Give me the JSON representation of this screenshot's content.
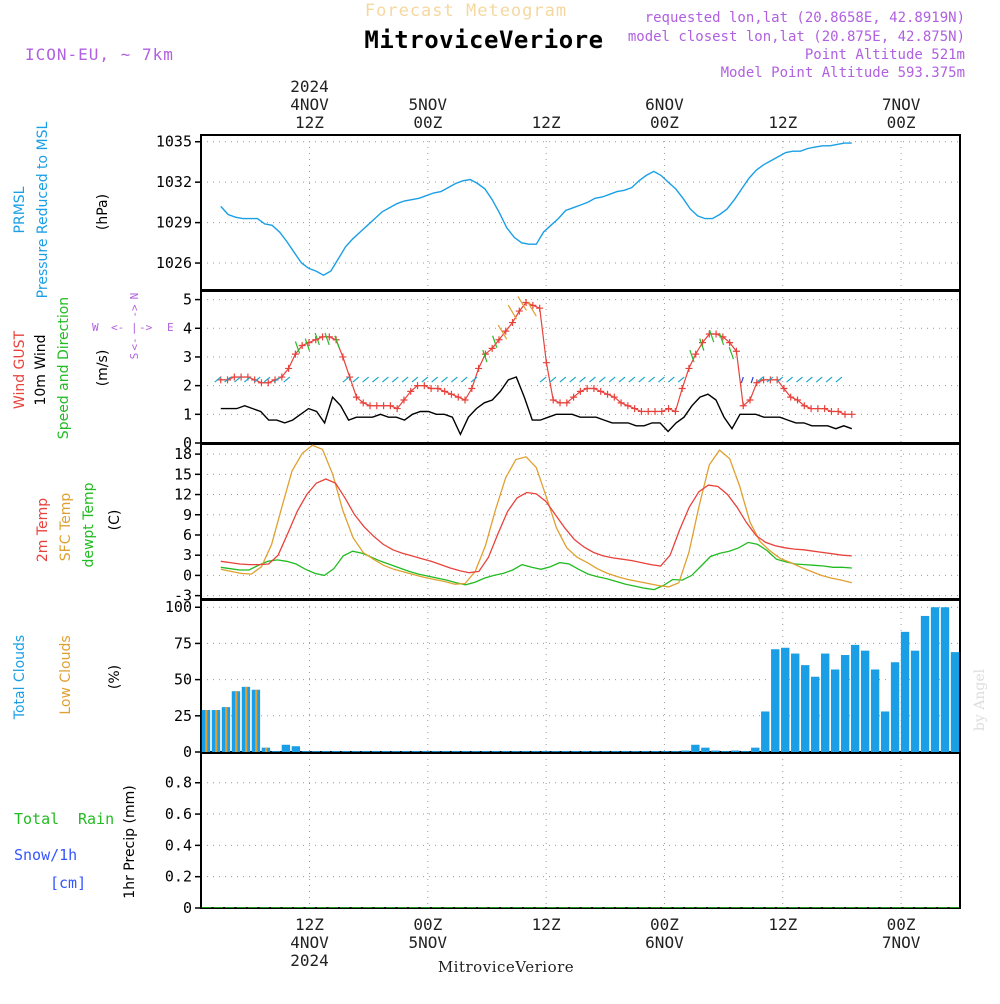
{
  "header": {
    "subtitle": "Forecast Meteogram",
    "title": "MitroviceVeriore",
    "model": "ICON-EU, ~ 7km",
    "requested": "requested lon,lat (20.8658E, 42.8919N)",
    "closest": "model closest lon,lat (20.875E, 42.875N)",
    "point_alt": "Point Altitude 521m",
    "model_alt": "Model Point Altitude 593.375m"
  },
  "footer": {
    "station": "MitroviceVeriore",
    "credit": "by Angel"
  },
  "colors": {
    "pressure": "#1a9fe6",
    "gust": "#e8423c",
    "wind": "#000000",
    "sfc": "#e0a030",
    "dewpt": "#22bb22",
    "clouds_total": "#1a9fe6",
    "clouds_low": "#e0a030",
    "purple": "#b060e0",
    "rain": "#22bb22",
    "snow": "#3355ff"
  },
  "time_axis": {
    "hours": 64,
    "top_ticks": [
      {
        "h": 9,
        "line1": "2024",
        "line2": "4NOV",
        "line3": "12Z"
      },
      {
        "h": 21,
        "line1": "",
        "line2": "5NOV",
        "line3": "00Z"
      },
      {
        "h": 33,
        "line1": "",
        "line2": "",
        "line3": "12Z"
      },
      {
        "h": 45,
        "line1": "",
        "line2": "6NOV",
        "line3": "00Z"
      },
      {
        "h": 57,
        "line1": "",
        "line2": "",
        "line3": "12Z"
      },
      {
        "h": 69,
        "line1": "",
        "line2": "7NOV",
        "line3": "00Z"
      }
    ],
    "bottom_ticks": [
      {
        "h": 9,
        "line1": "12Z",
        "line2": "4NOV",
        "line3": "2024"
      },
      {
        "h": 21,
        "line1": "00Z",
        "line2": "5NOV",
        "line3": ""
      },
      {
        "h": 33,
        "line1": "12Z",
        "line2": "",
        "line3": ""
      },
      {
        "h": 45,
        "line1": "00Z",
        "line2": "6NOV",
        "line3": ""
      },
      {
        "h": 57,
        "line1": "12Z",
        "line2": "",
        "line3": ""
      },
      {
        "h": 69,
        "line1": "00Z",
        "line2": "7NOV",
        "line3": ""
      }
    ]
  },
  "chart_data": [
    {
      "type": "line",
      "title": "PRMSL Pressure Reduced to MSL",
      "ylabel": "(hPa)",
      "label_lines": [
        "PRMSL",
        "Pressure Reduced to MSL"
      ],
      "ylim": [
        1024,
        1035.5
      ],
      "yticks": [
        1026,
        1029,
        1032,
        1035
      ],
      "series": [
        {
          "name": "PRMSL",
          "values": [
            1030.2,
            1029.6,
            1029.4,
            1029.3,
            1029.3,
            1029.3,
            1028.9,
            1028.8,
            1028.3,
            1027.6,
            1026.8,
            1026.0,
            1025.6,
            1025.4,
            1025.1,
            1025.4,
            1026.3,
            1027.2,
            1027.8,
            1028.3,
            1028.8,
            1029.3,
            1029.8,
            1030.1,
            1030.4,
            1030.6,
            1030.7,
            1030.8,
            1031.0,
            1031.2,
            1031.3,
            1031.6,
            1031.9,
            1032.1,
            1032.2,
            1031.9,
            1031.5,
            1030.7,
            1029.7,
            1028.6,
            1027.9,
            1027.5,
            1027.4,
            1027.4,
            1028.3,
            1028.8,
            1029.3,
            1029.9,
            1030.1,
            1030.3,
            1030.5,
            1030.8,
            1030.9,
            1031.1,
            1031.3,
            1031.4,
            1031.6,
            1032.1,
            1032.5,
            1032.8,
            1032.5,
            1032.0,
            1031.5,
            1030.8,
            1030.0,
            1029.5,
            1029.3,
            1029.3,
            1029.6,
            1030.0,
            1030.7,
            1031.5,
            1032.3,
            1032.9,
            1033.3,
            1033.6,
            1033.9,
            1034.2,
            1034.3,
            1034.3,
            1034.5,
            1034.6,
            1034.7,
            1034.7,
            1034.8,
            1034.9,
            1034.9
          ]
        }
      ]
    },
    {
      "type": "line",
      "title": "Wind GUST / 10m Wind Speed and Direction",
      "ylabel": "(m/s)",
      "label_lines": [
        "Wind GUST",
        "10m Wind",
        "Speed and Direction"
      ],
      "compass": {
        "n": "N",
        "s": "S",
        "w": "W",
        "e": "E"
      },
      "ylim": [
        0,
        5.3
      ],
      "yticks": [
        0,
        1,
        2,
        3,
        4,
        5
      ],
      "series": [
        {
          "name": "Wind GUST",
          "values": [
            2.2,
            2.2,
            2.3,
            2.3,
            2.3,
            2.2,
            2.1,
            2.1,
            2.2,
            2.3,
            2.6,
            3.1,
            3.4,
            3.5,
            3.6,
            3.7,
            3.7,
            3.6,
            3.0,
            2.3,
            1.6,
            1.4,
            1.3,
            1.3,
            1.3,
            1.3,
            1.2,
            1.5,
            1.8,
            2.0,
            2.0,
            1.9,
            1.9,
            1.8,
            1.7,
            1.6,
            1.5,
            1.9,
            2.6,
            3.1,
            3.3,
            3.6,
            3.9,
            4.2,
            4.6,
            4.9,
            4.8,
            4.7,
            2.8,
            1.5,
            1.4,
            1.4,
            1.6,
            1.8,
            1.9,
            1.9,
            1.8,
            1.7,
            1.6,
            1.4,
            1.3,
            1.2,
            1.1,
            1.1,
            1.1,
            1.1,
            1.2,
            1.1,
            1.9,
            2.6,
            3.1,
            3.5,
            3.8,
            3.8,
            3.7,
            3.5,
            3.2,
            1.3,
            1.5,
            2.1,
            2.2,
            2.2,
            2.2,
            1.9,
            1.6,
            1.5,
            1.3,
            1.2,
            1.2,
            1.2,
            1.1,
            1.1,
            1.0,
            1.0
          ]
        },
        {
          "name": "10m Wind",
          "values": [
            1.2,
            1.2,
            1.2,
            1.3,
            1.2,
            1.1,
            0.8,
            0.8,
            0.7,
            0.8,
            1.0,
            1.2,
            1.1,
            0.7,
            1.6,
            1.3,
            0.8,
            0.9,
            0.9,
            0.9,
            1.0,
            0.9,
            0.9,
            0.8,
            1.0,
            1.1,
            1.1,
            1.0,
            1.0,
            0.9,
            0.3,
            0.9,
            1.2,
            1.4,
            1.5,
            1.8,
            2.2,
            2.3,
            1.6,
            0.8,
            0.8,
            0.9,
            1.0,
            1.0,
            1.0,
            0.9,
            0.9,
            0.9,
            0.8,
            0.7,
            0.7,
            0.7,
            0.6,
            0.6,
            0.7,
            0.7,
            0.4,
            0.7,
            0.9,
            1.3,
            1.6,
            1.7,
            1.5,
            0.9,
            0.5,
            1.0,
            1.0,
            1.0,
            0.9,
            0.9,
            0.9,
            0.8,
            0.7,
            0.7,
            0.6,
            0.6,
            0.6,
            0.5,
            0.6,
            0.5
          ]
        }
      ]
    },
    {
      "type": "line",
      "title": "2m Temp / SFC Temp / dewpt Temp",
      "ylabel": "(C)",
      "label_lines": [
        "2m Temp",
        "SFC Temp",
        "dewpt Temp"
      ],
      "ylim": [
        -3.5,
        19.5
      ],
      "yticks": [
        -3,
        0,
        3,
        6,
        9,
        12,
        15,
        18
      ],
      "series": [
        {
          "name": "2m Temp",
          "values": [
            2.1,
            1.9,
            1.7,
            1.6,
            1.6,
            1.7,
            3.0,
            6.2,
            9.5,
            12.0,
            13.7,
            14.3,
            13.7,
            11.5,
            9.0,
            7.2,
            5.8,
            4.6,
            3.8,
            3.3,
            2.9,
            2.5,
            2.1,
            1.6,
            1.1,
            0.7,
            0.4,
            0.6,
            2.7,
            6.2,
            9.5,
            11.5,
            12.3,
            12.1,
            11.0,
            9.0,
            7.0,
            5.3,
            4.2,
            3.4,
            2.9,
            2.6,
            2.4,
            2.2,
            1.9,
            1.6,
            1.4,
            3.0,
            6.8,
            10.1,
            12.4,
            13.4,
            13.2,
            12.0,
            10.1,
            7.8,
            5.9,
            4.9,
            4.4,
            4.1,
            3.9,
            3.8,
            3.6,
            3.4,
            3.2,
            3.0,
            2.9
          ]
        },
        {
          "name": "SFC Temp",
          "values": [
            0.9,
            0.6,
            0.3,
            0.2,
            1.3,
            4.6,
            10.1,
            15.5,
            18.1,
            19.3,
            18.7,
            15.0,
            9.6,
            5.6,
            3.4,
            2.4,
            1.5,
            0.9,
            0.5,
            0.1,
            -0.3,
            -0.6,
            -0.9,
            -1.3,
            -1.2,
            0.6,
            4.4,
            9.8,
            14.5,
            17.2,
            17.6,
            16.0,
            11.6,
            7.0,
            4.1,
            2.7,
            1.9,
            1.0,
            0.3,
            -0.2,
            -0.6,
            -0.9,
            -1.2,
            -1.5,
            -1.7,
            -1.1,
            3.4,
            10.3,
            16.4,
            18.6,
            17.3,
            13.2,
            7.9,
            5.0,
            3.6,
            2.5,
            1.9,
            1.2,
            0.6,
            0.0,
            -0.4,
            -0.7,
            -1.1
          ]
        },
        {
          "name": "dewpt Temp",
          "values": [
            1.2,
            1.0,
            0.8,
            0.8,
            1.5,
            2.1,
            2.3,
            2.1,
            1.7,
            0.9,
            0.3,
            0.0,
            1.0,
            2.9,
            3.6,
            3.3,
            2.7,
            2.1,
            1.6,
            1.1,
            0.6,
            0.2,
            -0.1,
            -0.4,
            -0.7,
            -1.1,
            -1.4,
            -1.0,
            -0.4,
            0.0,
            0.3,
            0.8,
            1.6,
            1.2,
            0.9,
            1.3,
            1.9,
            1.7,
            0.9,
            0.2,
            -0.2,
            -0.5,
            -0.9,
            -1.3,
            -1.6,
            -1.9,
            -2.1,
            -1.5,
            -0.6,
            -0.7,
            0.0,
            1.4,
            2.8,
            3.3,
            3.6,
            4.1,
            4.9,
            4.6,
            3.7,
            2.4,
            2.0,
            1.7,
            1.6,
            1.5,
            1.4,
            1.2,
            1.2,
            1.1
          ]
        }
      ]
    },
    {
      "type": "bar",
      "title": "Total Clouds / Low Clouds",
      "ylabel": "(%)",
      "label_lines": [
        "Total Clouds",
        "Low Clouds"
      ],
      "ylim": [
        0,
        105
      ],
      "yticks": [
        0,
        25,
        50,
        75,
        100
      ],
      "series": [
        {
          "name": "Total Clouds",
          "values": [
            29,
            29,
            31,
            42,
            45,
            43,
            3,
            0,
            5,
            4,
            0,
            0,
            0,
            0,
            0,
            0,
            0,
            0,
            0,
            0,
            0,
            0,
            0,
            0,
            0,
            0,
            0,
            0,
            0,
            0,
            0,
            0,
            0,
            0,
            0,
            0,
            0,
            0,
            0,
            0,
            0,
            0,
            0,
            0,
            0,
            0,
            0,
            0,
            1,
            5,
            3,
            1,
            0,
            1,
            0,
            3,
            28,
            71,
            72,
            68,
            60,
            52,
            68,
            57,
            67,
            74,
            70,
            57,
            28,
            62,
            83,
            70,
            94,
            100,
            100,
            69
          ]
        },
        {
          "name": "Low Clouds",
          "values": [
            29,
            29,
            31,
            42,
            45,
            43,
            3,
            0,
            0,
            0,
            0,
            0,
            0,
            0,
            0,
            0,
            0,
            0,
            0,
            0,
            0,
            0,
            0,
            0,
            0,
            0,
            0,
            0,
            0,
            0,
            0,
            0,
            0,
            0,
            0,
            0,
            0,
            0,
            0,
            0,
            0,
            0,
            0,
            0,
            0,
            0,
            0,
            0,
            0,
            0,
            0,
            0,
            0,
            0,
            0,
            0,
            0,
            0,
            0,
            0,
            0,
            0,
            0,
            0,
            0,
            0,
            0,
            0,
            0,
            0,
            0,
            0,
            0,
            0,
            0,
            0
          ]
        }
      ]
    },
    {
      "type": "bar",
      "title": "1hr Precip",
      "ylabel": "1hr Precip (mm)",
      "label_lines": [
        "Total",
        "Rain",
        "Snow/1h",
        "[cm]"
      ],
      "ylim": [
        0,
        0.99
      ],
      "yticks": [
        0,
        0.2,
        0.4,
        0.6,
        0.8
      ],
      "ytick_labels": [
        "0",
        "0.2",
        "0.4",
        "0.6",
        "0.8"
      ],
      "series": [
        {
          "name": "Total Rain",
          "values": [
            0,
            0,
            0,
            0,
            0,
            0,
            0,
            0,
            0,
            0,
            0,
            0,
            0,
            0,
            0,
            0,
            0,
            0,
            0,
            0,
            0,
            0,
            0,
            0,
            0,
            0,
            0,
            0,
            0,
            0,
            0,
            0,
            0,
            0,
            0,
            0,
            0,
            0,
            0,
            0,
            0,
            0,
            0,
            0,
            0,
            0,
            0,
            0,
            0,
            0,
            0,
            0,
            0,
            0,
            0,
            0,
            0,
            0,
            0,
            0,
            0,
            0,
            0,
            0,
            0,
            0
          ]
        }
      ]
    }
  ]
}
